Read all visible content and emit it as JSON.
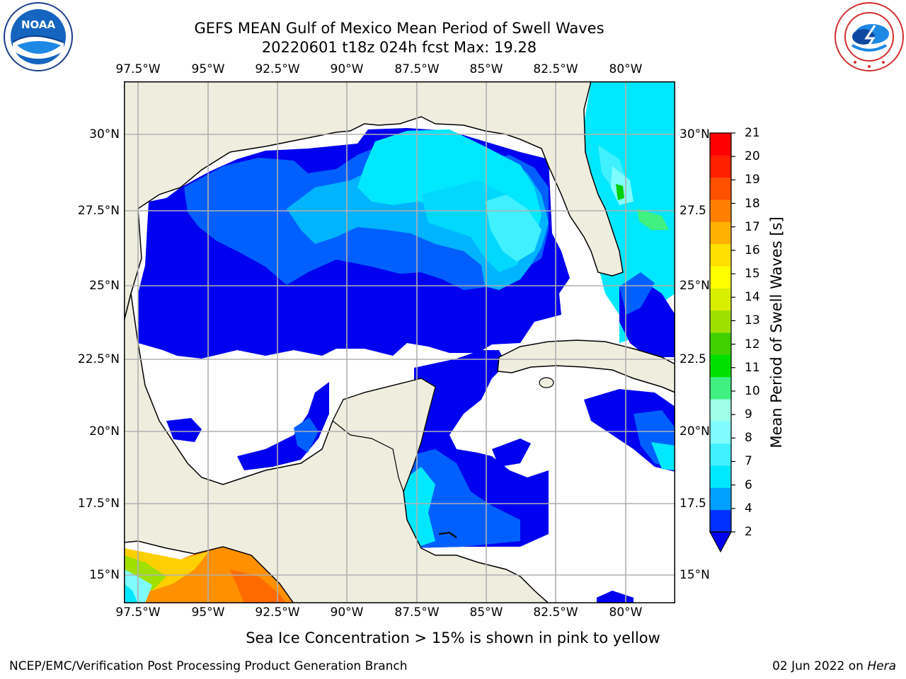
{
  "header": {
    "title_line1": "GEFS MEAN Gulf of Mexico Mean Period of Swell Waves",
    "title_line2": "20220601 t18z 024h fcst   Max: 19.28"
  },
  "logos": {
    "left": {
      "text": "NOAA",
      "ring_text": "NATIONAL OCEANIC AND ATMOSPHERIC ADMINISTRATION · U.S. DEPARTMENT OF COMMERCE",
      "icon": "noaa-logo-icon"
    },
    "right": {
      "ring_text": "NATIONAL WEATHER SERVICE",
      "icon": "nws-logo-icon"
    }
  },
  "axes": {
    "lon_labels_top": [
      "97.5°W",
      "95°W",
      "92.5°W",
      "90°W",
      "87.5°W",
      "85°W",
      "82.5°W",
      "80°W"
    ],
    "lon_labels_bottom": [
      "97.5°W",
      "95°W",
      "92.5°W",
      "90°W",
      "87.5°W",
      "85°W",
      "82.5°W",
      "80°W"
    ],
    "lat_labels_left": [
      "30°N",
      "27.5°N",
      "25°N",
      "22.5°N",
      "20°N",
      "17.5°N",
      "15°N"
    ],
    "lat_labels_right": [
      "30°N",
      "27.5",
      "25°N",
      "22.5",
      "20°N",
      "17.5",
      "15°N"
    ],
    "extent": {
      "lon_min": -98,
      "lon_max": -78.2,
      "lat_min": 14.0,
      "lat_max": 31.8
    }
  },
  "colorbar": {
    "title": "Mean Period of Swell Waves [s]",
    "levels": [
      "2",
      "4",
      "6",
      "7",
      "8",
      "9",
      "10",
      "11",
      "12",
      "13",
      "14",
      "15",
      "16",
      "17",
      "18",
      "19",
      "20",
      "21"
    ],
    "colors": [
      "#0030ff",
      "#00a0ff",
      "#00e8ff",
      "#40f0ff",
      "#80fcff",
      "#a0ffe8",
      "#40f080",
      "#00e000",
      "#40d000",
      "#a0e000",
      "#d8f000",
      "#ffff00",
      "#ffe000",
      "#ffb000",
      "#ff8000",
      "#ff5000",
      "#ff2000",
      "#ff0000"
    ]
  },
  "map_colors": {
    "land": "#efedde",
    "ocean_no_data": "#ffffff",
    "grid": "#b0b0b0",
    "coast": "#000000"
  },
  "caption": "Sea Ice Concentration > 15% is shown in pink to yellow",
  "footer": {
    "left": "NCEP/EMC/Verification Post Processing Product Generation Branch",
    "right_date": "02 Jun 2022 on ",
    "right_host": "Hera"
  }
}
